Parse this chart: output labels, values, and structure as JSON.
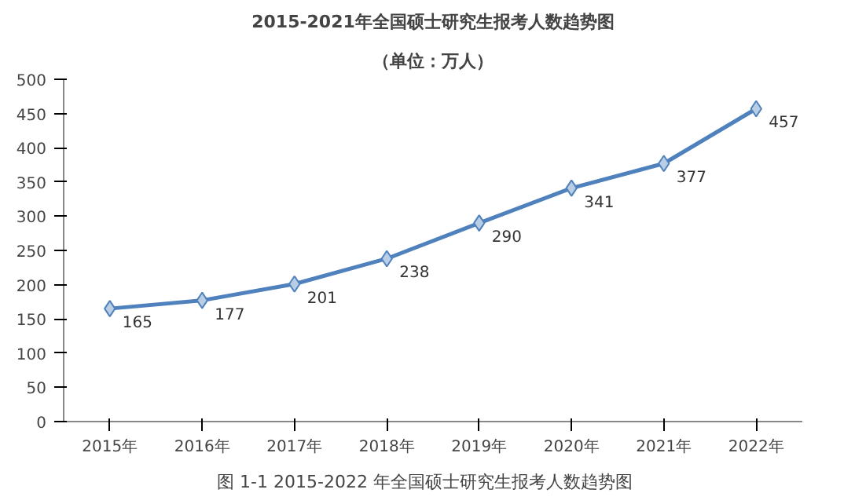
{
  "chart_data": {
    "type": "line",
    "title": "2015-2021年全国硕士研究生报考人数趋势图",
    "subtitle": "（单位：万人）",
    "categories": [
      "2015年",
      "2016年",
      "2017年",
      "2018年",
      "2019年",
      "2020年",
      "2021年",
      "2022年"
    ],
    "series": [
      {
        "color": "#4f81bd",
        "values": [
          165,
          177,
          201,
          238,
          290,
          341,
          377,
          457
        ]
      }
    ],
    "ylim": [
      0,
      500
    ],
    "yticks": [
      0,
      50,
      100,
      150,
      200,
      250,
      300,
      350,
      400,
      450,
      500
    ],
    "marker": "diamond",
    "data_labels": true,
    "grid": false,
    "annotations": [
      "图 1-1    2015-2022 年全国硕士研究生报考人数趋势图"
    ]
  }
}
